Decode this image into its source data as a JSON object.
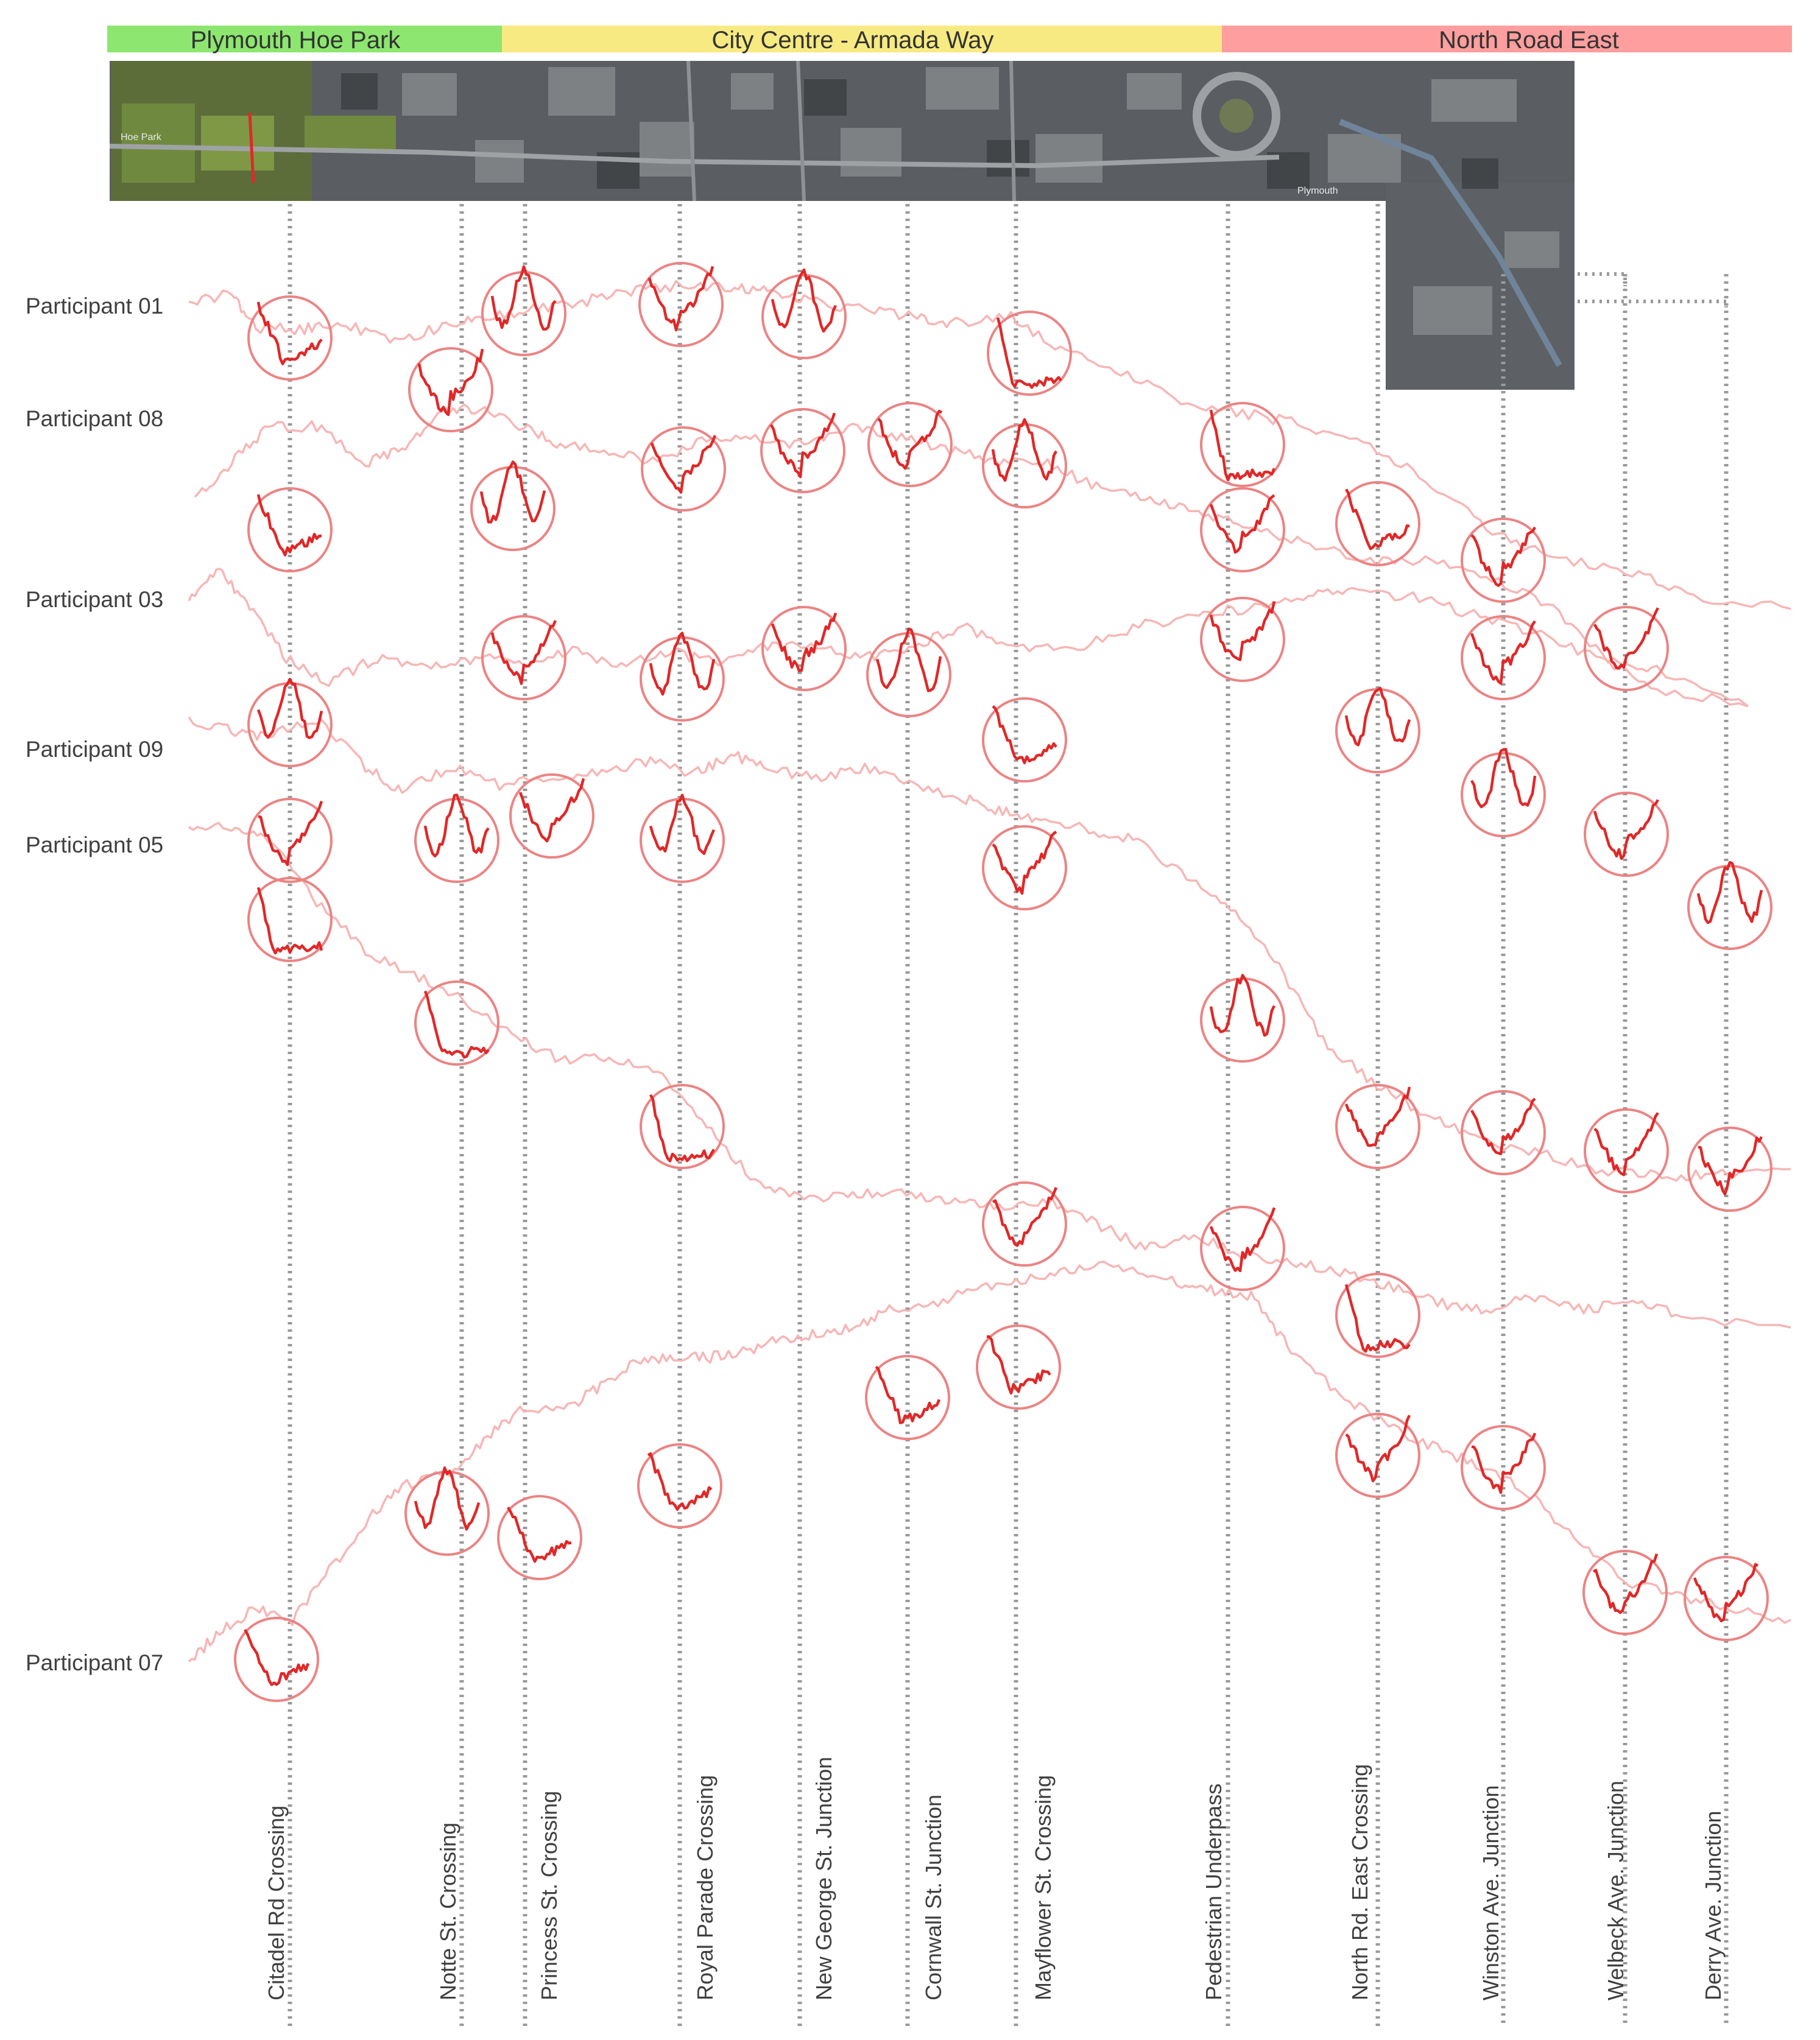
{
  "sections": [
    {
      "name": "Plymouth Hoe Park",
      "color": "#8ce66f"
    },
    {
      "name": "City Centre - Armada Way",
      "color": "#f7ea82"
    },
    {
      "name": "North Road East",
      "color": "#ff9e9e"
    }
  ],
  "aerial_labels": {
    "park": "Hoe Park",
    "town": "Plymouth"
  },
  "locations": [
    "Citadel Rd Crossing",
    "Notte St. Crossing",
    "Princess St. Crossing",
    "Royal Parade Crossing",
    "New George St. Junction",
    "Cornwall St. Junction",
    "Mayflower St.  Crossing",
    "Pedestrian Underpass",
    "North Rd. East  Crossing",
    "Winston Ave.  Junction",
    "Welbeck Ave.  Junction",
    "Derry Ave.  Junction"
  ],
  "participants": [
    {
      "name": "Participant 01",
      "visible": true
    },
    {
      "name": "Participant 08",
      "visible": true
    },
    {
      "name": "Participant 03",
      "visible": true
    },
    {
      "name": "Participant 09",
      "visible": true
    },
    {
      "name": "Participant 05",
      "visible": true
    },
    {
      "name": "Participant 07",
      "visible": true
    }
  ],
  "colors": {
    "trace": "#f7b6b6",
    "highlight": "#e02828",
    "circle": "#ec8383",
    "guide": "#9a9a9a"
  }
}
